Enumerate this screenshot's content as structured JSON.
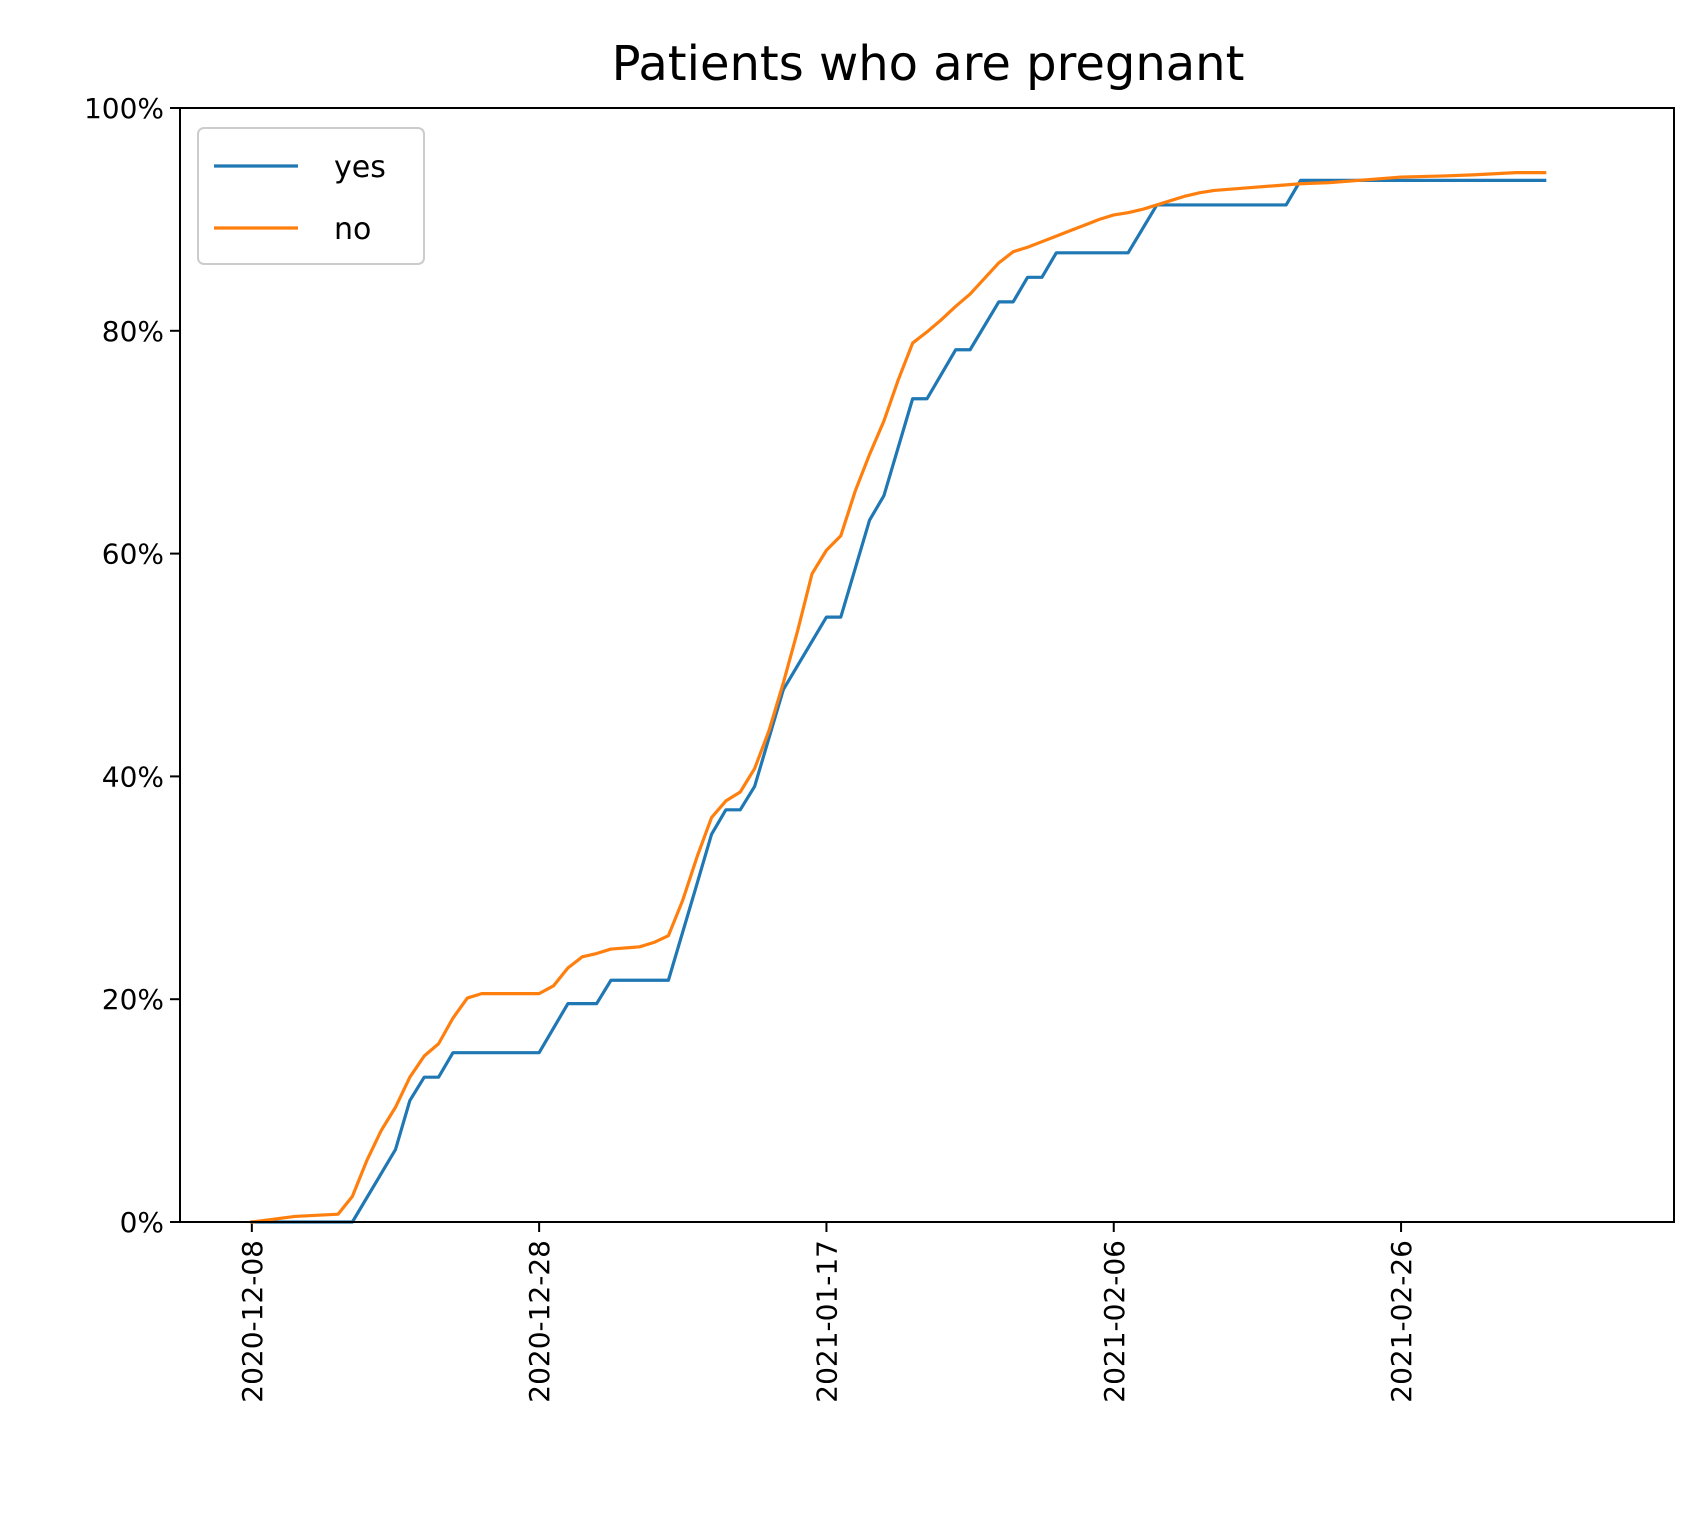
{
  "chart_data": {
    "type": "line",
    "title": "Patients who are pregnant",
    "xlabel": "",
    "ylabel": "",
    "x_ticks": [
      "2020-12-08",
      "2020-12-28",
      "2021-01-17",
      "2021-02-06",
      "2021-02-26"
    ],
    "y_ticks": [
      "0%",
      "20%",
      "40%",
      "60%",
      "80%",
      "100%"
    ],
    "xlim": [
      "2020-12-03",
      "2021-03-17"
    ],
    "ylim": [
      0,
      100
    ],
    "legend_position": "top-left",
    "grid": false,
    "series": [
      {
        "name": "yes",
        "color": "#1f77b4",
        "points": [
          [
            "2020-12-08",
            0
          ],
          [
            "2020-12-15",
            0
          ],
          [
            "2020-12-18",
            6.5
          ],
          [
            "2020-12-19",
            10.9
          ],
          [
            "2020-12-20",
            13.0
          ],
          [
            "2020-12-21",
            13.0
          ],
          [
            "2020-12-22",
            15.2
          ],
          [
            "2020-12-28",
            15.2
          ],
          [
            "2020-12-30",
            19.6
          ],
          [
            "2021-01-01",
            19.6
          ],
          [
            "2021-01-02",
            21.7
          ],
          [
            "2021-01-06",
            21.7
          ],
          [
            "2021-01-08",
            30.4
          ],
          [
            "2021-01-09",
            34.8
          ],
          [
            "2021-01-10",
            37.0
          ],
          [
            "2021-01-11",
            37.0
          ],
          [
            "2021-01-12",
            39.1
          ],
          [
            "2021-01-14",
            47.8
          ],
          [
            "2021-01-17",
            54.3
          ],
          [
            "2021-01-18",
            54.3
          ],
          [
            "2021-01-20",
            63.0
          ],
          [
            "2021-01-21",
            65.2
          ],
          [
            "2021-01-23",
            73.9
          ],
          [
            "2021-01-24",
            73.9
          ],
          [
            "2021-01-26",
            78.3
          ],
          [
            "2021-01-27",
            78.3
          ],
          [
            "2021-01-29",
            82.6
          ],
          [
            "2021-01-30",
            82.6
          ],
          [
            "2021-01-31",
            84.8
          ],
          [
            "2021-02-01",
            84.8
          ],
          [
            "2021-02-02",
            87.0
          ],
          [
            "2021-02-07",
            87.0
          ],
          [
            "2021-02-09",
            91.3
          ],
          [
            "2021-02-18",
            91.3
          ],
          [
            "2021-02-19",
            93.5
          ],
          [
            "2021-03-08",
            93.5
          ]
        ]
      },
      {
        "name": "no",
        "color": "#ff7f0e",
        "points": [
          [
            "2020-12-08",
            0
          ],
          [
            "2020-12-11",
            0.5
          ],
          [
            "2020-12-14",
            0.7
          ],
          [
            "2020-12-15",
            2.3
          ],
          [
            "2020-12-16",
            5.5
          ],
          [
            "2020-12-17",
            8.2
          ],
          [
            "2020-12-18",
            10.3
          ],
          [
            "2020-12-19",
            13.0
          ],
          [
            "2020-12-20",
            14.9
          ],
          [
            "2020-12-21",
            16.0
          ],
          [
            "2020-12-22",
            18.3
          ],
          [
            "2020-12-23",
            20.1
          ],
          [
            "2020-12-24",
            20.5
          ],
          [
            "2020-12-28",
            20.5
          ],
          [
            "2020-12-29",
            21.2
          ],
          [
            "2020-12-30",
            22.8
          ],
          [
            "2020-12-31",
            23.8
          ],
          [
            "2021-01-01",
            24.1
          ],
          [
            "2021-01-02",
            24.5
          ],
          [
            "2021-01-04",
            24.7
          ],
          [
            "2021-01-05",
            25.1
          ],
          [
            "2021-01-06",
            25.7
          ],
          [
            "2021-01-07",
            28.9
          ],
          [
            "2021-01-08",
            32.8
          ],
          [
            "2021-01-09",
            36.3
          ],
          [
            "2021-01-10",
            37.8
          ],
          [
            "2021-01-11",
            38.6
          ],
          [
            "2021-01-12",
            40.7
          ],
          [
            "2021-01-13",
            44.1
          ],
          [
            "2021-01-14",
            48.4
          ],
          [
            "2021-01-15",
            53.1
          ],
          [
            "2021-01-16",
            58.2
          ],
          [
            "2021-01-17",
            60.3
          ],
          [
            "2021-01-18",
            61.6
          ],
          [
            "2021-01-19",
            65.6
          ],
          [
            "2021-01-20",
            68.9
          ],
          [
            "2021-01-21",
            71.9
          ],
          [
            "2021-01-22",
            75.6
          ],
          [
            "2021-01-23",
            78.9
          ],
          [
            "2021-01-24",
            79.9
          ],
          [
            "2021-01-25",
            81.0
          ],
          [
            "2021-01-26",
            82.2
          ],
          [
            "2021-01-27",
            83.3
          ],
          [
            "2021-01-28",
            84.7
          ],
          [
            "2021-01-29",
            86.1
          ],
          [
            "2021-01-30",
            87.1
          ],
          [
            "2021-01-31",
            87.5
          ],
          [
            "2021-02-01",
            88.0
          ],
          [
            "2021-02-02",
            88.5
          ],
          [
            "2021-02-03",
            89.0
          ],
          [
            "2021-02-04",
            89.5
          ],
          [
            "2021-02-05",
            90.0
          ],
          [
            "2021-02-06",
            90.4
          ],
          [
            "2021-02-07",
            90.6
          ],
          [
            "2021-02-08",
            90.9
          ],
          [
            "2021-02-09",
            91.3
          ],
          [
            "2021-02-10",
            91.7
          ],
          [
            "2021-02-11",
            92.1
          ],
          [
            "2021-02-12",
            92.4
          ],
          [
            "2021-02-13",
            92.6
          ],
          [
            "2021-02-15",
            92.8
          ],
          [
            "2021-02-17",
            93.0
          ],
          [
            "2021-02-19",
            93.2
          ],
          [
            "2021-02-21",
            93.3
          ],
          [
            "2021-02-23",
            93.5
          ],
          [
            "2021-02-26",
            93.8
          ],
          [
            "2021-03-01",
            93.9
          ],
          [
            "2021-03-03",
            94.0
          ],
          [
            "2021-03-06",
            94.2
          ],
          [
            "2021-03-08",
            94.2
          ]
        ]
      }
    ]
  }
}
